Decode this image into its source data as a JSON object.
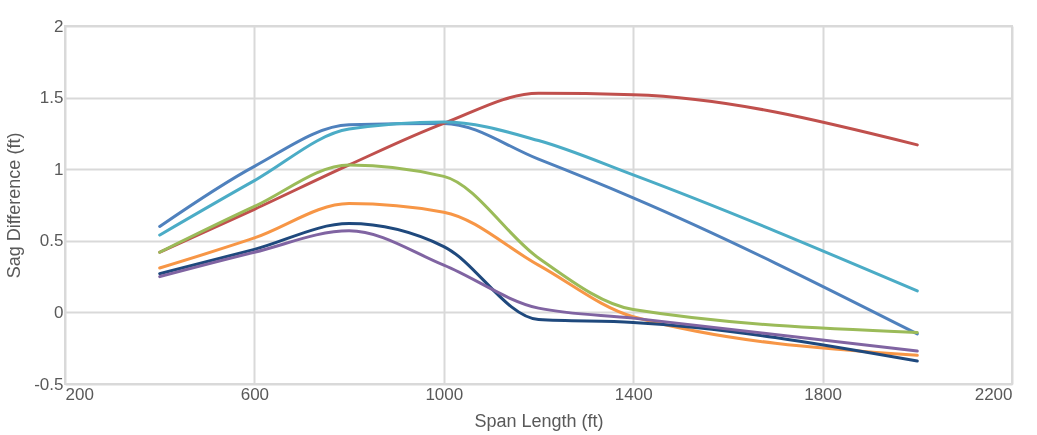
{
  "chart_data": {
    "type": "line",
    "xlabel": "Span Length (ft)",
    "ylabel": "Sag Difference (ft)",
    "x": [
      400,
      600,
      800,
      1000,
      1200,
      1400,
      2000
    ],
    "series": [
      {
        "color": "#4f81bd",
        "values": [
          0.6,
          1.02,
          1.31,
          1.32,
          1.07,
          0.8,
          -0.15
        ]
      },
      {
        "color": "#c0504d",
        "values": [
          0.42,
          0.72,
          1.03,
          1.32,
          1.53,
          1.52,
          1.17
        ]
      },
      {
        "color": "#4bacc6",
        "values": [
          0.54,
          0.92,
          1.28,
          1.33,
          1.2,
          0.96,
          0.15
        ]
      },
      {
        "color": "#9bbb59",
        "values": [
          0.42,
          0.74,
          1.03,
          0.95,
          0.38,
          0.02,
          -0.14
        ]
      },
      {
        "color": "#f79646",
        "values": [
          0.31,
          0.52,
          0.76,
          0.7,
          0.33,
          -0.03,
          -0.3
        ]
      },
      {
        "color": "#1f497d",
        "values": [
          0.27,
          0.44,
          0.62,
          0.46,
          -0.05,
          -0.07,
          -0.34
        ]
      },
      {
        "color": "#8064a2",
        "values": [
          0.25,
          0.42,
          0.57,
          0.33,
          0.03,
          -0.04,
          -0.27
        ]
      }
    ],
    "xlim": [
      200,
      2200
    ],
    "xticks": [
      200,
      600,
      1000,
      1400,
      1800,
      2200
    ],
    "ylim": [
      -0.5,
      2
    ],
    "yticks": [
      -0.5,
      0,
      0.5,
      1,
      1.5,
      2
    ],
    "grid": true,
    "legend": false,
    "marker": "none",
    "line_style": "solid"
  }
}
